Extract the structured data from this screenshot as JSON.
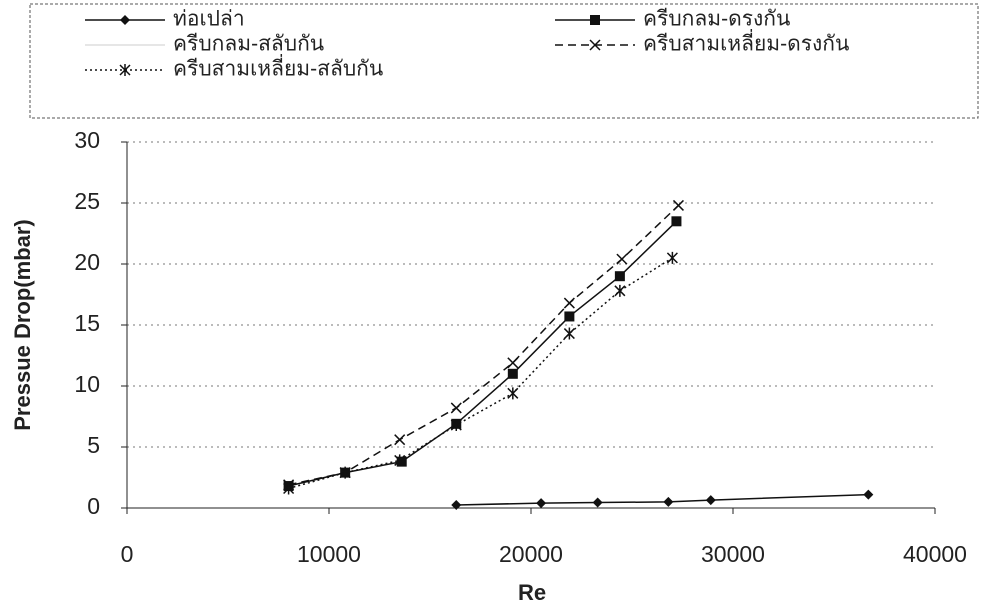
{
  "chart_data": {
    "type": "line",
    "x_label": "Re",
    "y_label": "Pressue Drop(mbar)",
    "xlim": [
      0,
      40000
    ],
    "xticks": [
      0,
      10000,
      20000,
      30000,
      40000
    ],
    "ylim": [
      0,
      30
    ],
    "yticks": [
      0,
      5,
      10,
      15,
      20,
      25,
      30
    ],
    "grid": true,
    "legend": "top",
    "series": [
      {
        "name": "ท่อเปล่า",
        "color": "#111111",
        "marker": "diamond",
        "dash": "solid",
        "x": [
          16300,
          20500,
          23300,
          26800,
          28900,
          36700
        ],
        "values": [
          0.25,
          0.4,
          0.45,
          0.5,
          0.65,
          1.1
        ]
      },
      {
        "name": "ครีบกลม-ดรงกัน",
        "color": "#111111",
        "marker": "square",
        "dash": "solid",
        "x": [
          8000,
          10800,
          13600,
          16300,
          19100,
          21900,
          24400,
          27200
        ],
        "values": [
          1.8,
          2.9,
          3.8,
          6.9,
          11,
          15.7,
          19,
          23.5
        ]
      },
      {
        "name": "ครีบกลม-สลับกัน",
        "color": "#dddddd",
        "marker": "none",
        "dash": "solid",
        "x": [
          8000,
          10800,
          13600,
          16300,
          19100,
          21900,
          24400,
          27200
        ],
        "values": [
          null,
          null,
          null,
          null,
          null,
          null,
          null,
          null
        ]
      },
      {
        "name": "ครีบสามเหลี่ยม-ดรงกัน",
        "color": "#111111",
        "marker": "x",
        "dash": "dashed",
        "x": [
          8000,
          10800,
          13500,
          16300,
          19100,
          21900,
          24500,
          27300
        ],
        "values": [
          1.9,
          2.9,
          5.6,
          8.2,
          11.9,
          16.8,
          20.4,
          24.8
        ]
      },
      {
        "name": "ครีบสามเหลี่ยม-สลับกัน",
        "color": "#111111",
        "marker": "asterisk",
        "dash": "dotted",
        "x": [
          8000,
          10800,
          13500,
          16300,
          19100,
          21900,
          24400,
          27000
        ],
        "values": [
          1.6,
          2.9,
          3.9,
          6.8,
          9.4,
          14.3,
          17.8,
          20.5
        ]
      }
    ]
  }
}
